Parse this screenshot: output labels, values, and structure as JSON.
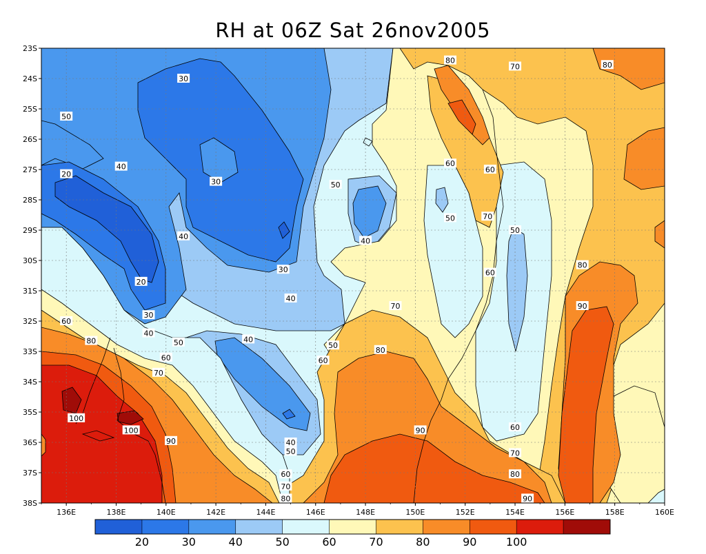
{
  "title": "RH at 06Z Sat 26nov2005",
  "map": {
    "lat_labels": [
      "23S",
      "24S",
      "25S",
      "26S",
      "27S",
      "28S",
      "29S",
      "30S",
      "31S",
      "32S",
      "33S",
      "34S",
      "35S",
      "36S",
      "37S",
      "38S"
    ],
    "lon_labels": [
      "136E",
      "138E",
      "140E",
      "142E",
      "144E",
      "146E",
      "148E",
      "150E",
      "152E",
      "154E",
      "156E",
      "158E",
      "160E"
    ],
    "lon_range": [
      135,
      160
    ],
    "lat_range": [
      -23,
      -38
    ],
    "grid": "dotted",
    "variable": "RH",
    "contour_labels": [
      {
        "text": "20",
        "lon": 136.0,
        "lat": -27.15
      },
      {
        "text": "20",
        "lon": 139.0,
        "lat": -30.7
      },
      {
        "text": "30",
        "lon": 140.7,
        "lat": -24.0
      },
      {
        "text": "30",
        "lon": 142.0,
        "lat": -27.4
      },
      {
        "text": "30",
        "lon": 139.3,
        "lat": -31.8
      },
      {
        "text": "30",
        "lon": 144.7,
        "lat": -30.3
      },
      {
        "text": "40",
        "lon": 138.2,
        "lat": -26.9
      },
      {
        "text": "40",
        "lon": 140.7,
        "lat": -29.2
      },
      {
        "text": "40",
        "lon": 139.3,
        "lat": -32.4
      },
      {
        "text": "40",
        "lon": 145.0,
        "lat": -31.25
      },
      {
        "text": "40",
        "lon": 143.3,
        "lat": -32.6
      },
      {
        "text": "40",
        "lon": 148.0,
        "lat": -29.35
      },
      {
        "text": "40",
        "lon": 145.0,
        "lat": -36.0
      },
      {
        "text": "50",
        "lon": 136.0,
        "lat": -25.25
      },
      {
        "text": "50",
        "lon": 146.8,
        "lat": -27.5
      },
      {
        "text": "50",
        "lon": 151.4,
        "lat": -28.6
      },
      {
        "text": "50",
        "lon": 154.0,
        "lat": -29.0
      },
      {
        "text": "50",
        "lon": 140.5,
        "lat": -32.7
      },
      {
        "text": "50",
        "lon": 146.7,
        "lat": -32.8
      },
      {
        "text": "50",
        "lon": 145.0,
        "lat": -36.3
      },
      {
        "text": "60",
        "lon": 151.4,
        "lat": -26.8
      },
      {
        "text": "60",
        "lon": 153.0,
        "lat": -27.0
      },
      {
        "text": "60",
        "lon": 153.0,
        "lat": -30.4
      },
      {
        "text": "60",
        "lon": 136.0,
        "lat": -32.0
      },
      {
        "text": "60",
        "lon": 140.0,
        "lat": -33.2
      },
      {
        "text": "60",
        "lon": 146.3,
        "lat": -33.3
      },
      {
        "text": "60",
        "lon": 154.0,
        "lat": -35.5
      },
      {
        "text": "60",
        "lon": 144.8,
        "lat": -37.05
      },
      {
        "text": "70",
        "lon": 154.0,
        "lat": -23.6
      },
      {
        "text": "70",
        "lon": 152.9,
        "lat": -28.55
      },
      {
        "text": "70",
        "lon": 149.2,
        "lat": -31.5
      },
      {
        "text": "70",
        "lon": 139.7,
        "lat": -33.7
      },
      {
        "text": "70",
        "lon": 154.0,
        "lat": -36.35
      },
      {
        "text": "70",
        "lon": 144.8,
        "lat": -37.45
      },
      {
        "text": "80",
        "lon": 151.4,
        "lat": -23.4
      },
      {
        "text": "80",
        "lon": 157.7,
        "lat": -23.55
      },
      {
        "text": "80",
        "lon": 137.0,
        "lat": -32.65
      },
      {
        "text": "80",
        "lon": 148.6,
        "lat": -32.95
      },
      {
        "text": "80",
        "lon": 156.7,
        "lat": -30.15
      },
      {
        "text": "80",
        "lon": 154.0,
        "lat": -37.05
      },
      {
        "text": "80",
        "lon": 144.8,
        "lat": -37.85
      },
      {
        "text": "90",
        "lon": 156.7,
        "lat": -31.5
      },
      {
        "text": "90",
        "lon": 150.2,
        "lat": -35.6
      },
      {
        "text": "90",
        "lon": 140.2,
        "lat": -35.95
      },
      {
        "text": "90",
        "lon": 154.5,
        "lat": -37.85
      },
      {
        "text": "100",
        "lon": 136.4,
        "lat": -35.2
      },
      {
        "text": "100",
        "lon": 138.6,
        "lat": -35.6
      }
    ]
  },
  "colorbar": {
    "labels": [
      "20",
      "30",
      "40",
      "50",
      "60",
      "70",
      "80",
      "90",
      "100"
    ],
    "colors": [
      "#2060d8",
      "#2c78e8",
      "#4a98ee",
      "#9ccaf6",
      "#daf8fc",
      "#fff8b8",
      "#fcc24e",
      "#f88c28",
      "#f05a10",
      "#dc1c0c",
      "#a00c08"
    ]
  },
  "fill_colors": {
    "c20": "#2060d8",
    "c30": "#2c78e8",
    "c40": "#4a98ee",
    "c50": "#9ccaf6",
    "c60": "#daf8fc",
    "c70": "#fff8b8",
    "c80": "#fcc24e",
    "c90": "#f88c28",
    "c95": "#f05a10",
    "c100": "#dc1c0c",
    "c110": "#a00c08"
  }
}
